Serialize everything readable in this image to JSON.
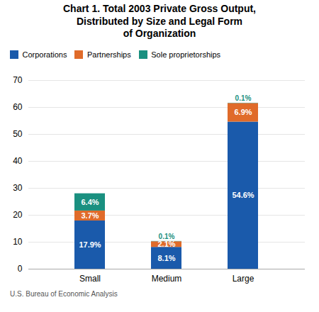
{
  "chart_data": {
    "type": "bar",
    "title": "Chart 1. Total 2003 Private Gross Output,\nDistributed by Size and Legal Form\nof Organization",
    "caption": "U.S. Bureau of Economic Analysis",
    "categories": [
      "Small",
      "Medium",
      "Large"
    ],
    "series": [
      {
        "name": "Corporations",
        "color": "#1a5aab",
        "values": [
          17.9,
          8.1,
          54.6
        ],
        "value_labels": [
          "17.9%",
          "8.1%",
          "54.6%"
        ]
      },
      {
        "name": "Partnerships",
        "color": "#e06b2a",
        "values": [
          3.7,
          2.1,
          6.9
        ],
        "value_labels": [
          "3.7%",
          "2.1%",
          "6.9%"
        ]
      },
      {
        "name": "Sole proprietorships",
        "color": "#1a9080",
        "values": [
          6.4,
          0.1,
          0.1
        ],
        "value_labels": [
          "6.4%",
          "0.1%",
          "0.1%"
        ]
      }
    ],
    "ylim": [
      0,
      70
    ],
    "yticks": [
      0,
      10,
      20,
      30,
      40,
      50,
      60,
      70
    ],
    "grid": true,
    "stacked": true,
    "data_labels": true,
    "legend": "top"
  }
}
